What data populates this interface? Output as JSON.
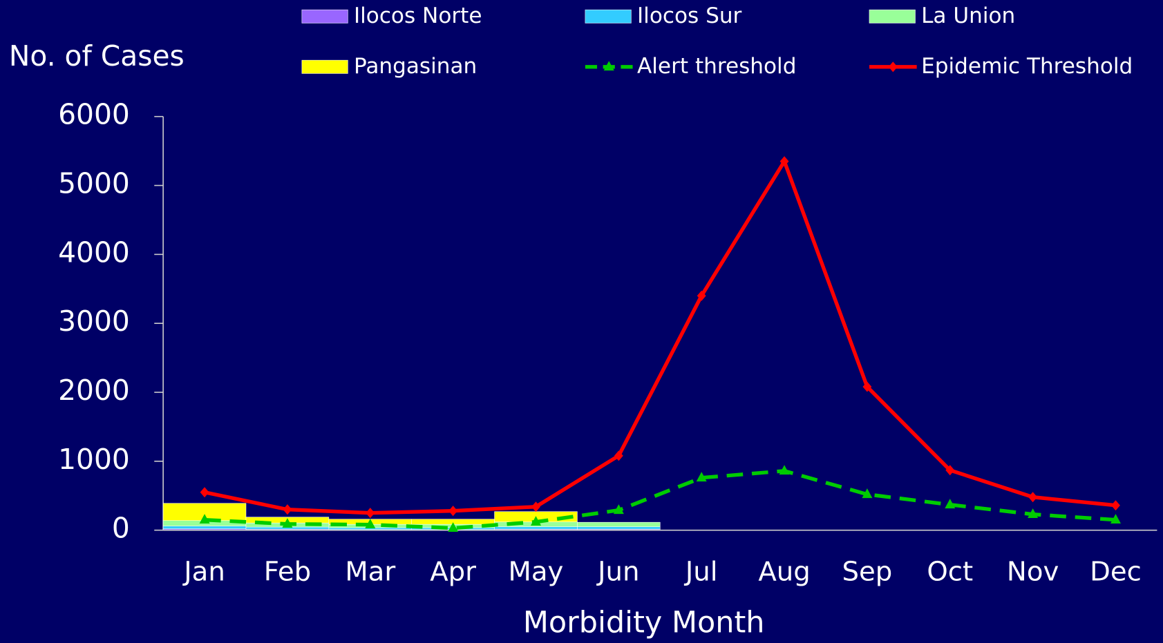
{
  "chart_data": {
    "type": "bar",
    "y_label": "No. of Cases",
    "x_label": "Morbidity Month",
    "categories": [
      "Jan",
      "Feb",
      "Mar",
      "Apr",
      "May",
      "Jun",
      "Jul",
      "Aug",
      "Sep",
      "Oct",
      "Nov",
      "Dec"
    ],
    "series": [
      {
        "name": "Ilocos Norte",
        "color": "#9966ff",
        "values": [
          20,
          15,
          10,
          10,
          15,
          15,
          null,
          null,
          null,
          null,
          null,
          null
        ]
      },
      {
        "name": "Ilocos Sur",
        "color": "#33ccff",
        "values": [
          40,
          30,
          25,
          25,
          35,
          35,
          null,
          null,
          null,
          null,
          null,
          null
        ]
      },
      {
        "name": "La Union",
        "color": "#99ff99",
        "values": [
          80,
          60,
          50,
          50,
          70,
          65,
          null,
          null,
          null,
          null,
          null,
          null
        ]
      },
      {
        "name": "Pangasinan",
        "color": "#ffff00",
        "values": [
          250,
          85,
          75,
          75,
          150,
          0,
          null,
          null,
          null,
          null,
          null,
          null
        ]
      },
      {
        "name": "Alert threshold",
        "type": "line",
        "style": "dashed",
        "marker": "triangle",
        "color": "#00cc00",
        "values": [
          150,
          90,
          80,
          30,
          120,
          290,
          760,
          860,
          520,
          370,
          230,
          150
        ]
      },
      {
        "name": "Epidemic Threshold",
        "type": "line",
        "style": "solid",
        "marker": "diamond",
        "color": "#ff0000",
        "values": [
          550,
          300,
          250,
          280,
          340,
          1080,
          3400,
          5350,
          2080,
          870,
          480,
          360
        ]
      }
    ],
    "ylim": [
      0,
      6000
    ],
    "yticks": [
      0,
      1000,
      2000,
      3000,
      4000,
      5000,
      6000
    ]
  }
}
